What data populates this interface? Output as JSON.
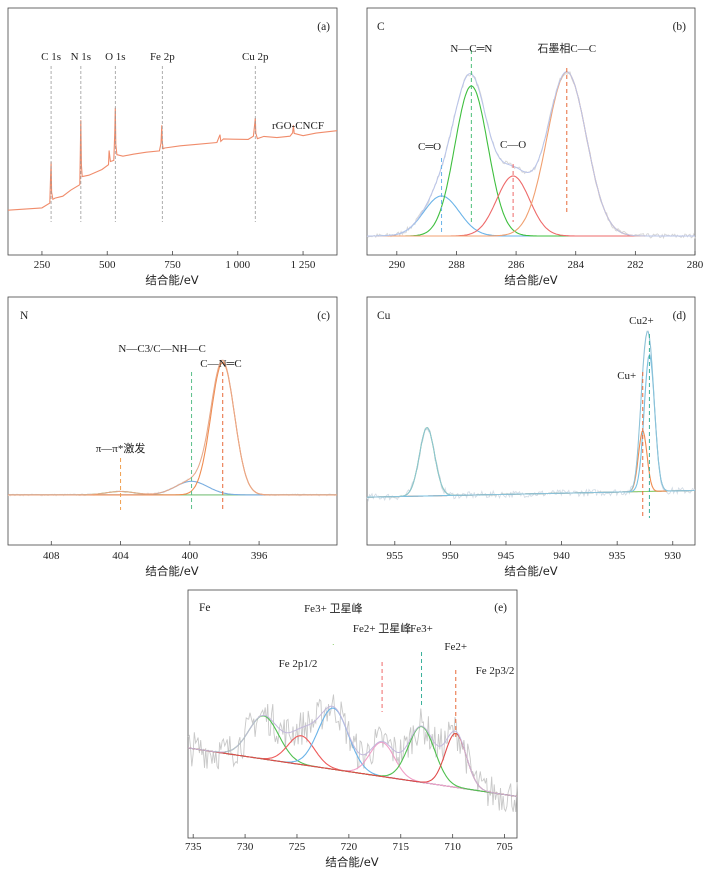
{
  "chart_data": [
    {
      "type": "line",
      "panel": "(a)",
      "corner_label": "",
      "xlabel": "结合能/eV",
      "xlim": [
        120,
        1380
      ],
      "ylim": [
        0,
        1
      ],
      "xticks": [
        "250",
        "500",
        "750",
        "1 000",
        "1 250"
      ],
      "xtick_values": [
        250,
        500,
        750,
        1000,
        1250
      ],
      "annotations": [
        {
          "text": "C 1s",
          "x": 285
        },
        {
          "text": "N 1s",
          "x": 399
        },
        {
          "text": "O 1s",
          "x": 531
        },
        {
          "text": "Fe 2p",
          "x": 711
        },
        {
          "text": "Cu 2p",
          "x": 1067
        }
      ],
      "series": [
        {
          "name": "rGO-CNCF",
          "color": "#f08c6b",
          "x": [
            120,
            250,
            280,
            283,
            285,
            287,
            292,
            300,
            330,
            360,
            395,
            397,
            399,
            401,
            404,
            430,
            480,
            505,
            507,
            512,
            525,
            529,
            531,
            533,
            537,
            560,
            600,
            650,
            700,
            706,
            709,
            711,
            714,
            720,
            780,
            850,
            920,
            932,
            935,
            945,
            980,
            1040,
            1060,
            1065,
            1067,
            1069,
            1075,
            1100,
            1150,
            1200,
            1210,
            1213,
            1216,
            1250,
            1300,
            1380
          ],
          "y": [
            0.1,
            0.12,
            0.14,
            0.28,
            0.36,
            0.2,
            0.16,
            0.17,
            0.18,
            0.21,
            0.24,
            0.4,
            0.58,
            0.34,
            0.28,
            0.29,
            0.32,
            0.34,
            0.42,
            0.36,
            0.37,
            0.52,
            0.64,
            0.45,
            0.4,
            0.39,
            0.4,
            0.41,
            0.42,
            0.46,
            0.55,
            0.46,
            0.43,
            0.43,
            0.44,
            0.45,
            0.46,
            0.5,
            0.47,
            0.48,
            0.48,
            0.48,
            0.49,
            0.56,
            0.59,
            0.51,
            0.48,
            0.49,
            0.49,
            0.49,
            0.51,
            0.55,
            0.51,
            0.5,
            0.51,
            0.52
          ]
        }
      ]
    },
    {
      "type": "line",
      "panel": "(b)",
      "corner_label": "C",
      "xlabel": "结合能/eV",
      "xlim": [
        291,
        280
      ],
      "ylim": [
        0,
        1
      ],
      "xticks": [
        "290",
        "288",
        "286",
        "284",
        "282",
        "280"
      ],
      "xtick_values": [
        290,
        288,
        286,
        284,
        282,
        280
      ],
      "peaks": [
        {
          "label": "C═O",
          "center": 288.5,
          "amp": 0.2,
          "fwhm": 1.4,
          "color": "#6ab3e8",
          "marker": "#6ab3e8"
        },
        {
          "label": "N—C═N",
          "center": 287.5,
          "amp": 0.75,
          "fwhm": 1.3,
          "color": "#3fbf3f",
          "marker": "#4fc07a"
        },
        {
          "label": "C—O",
          "center": 286.1,
          "amp": 0.3,
          "fwhm": 1.3,
          "color": "#ee6a6a",
          "marker": "#ee6a6a"
        },
        {
          "label": "石墨相C—C",
          "center": 284.3,
          "amp": 0.82,
          "fwhm": 1.55,
          "color": "#f0a070",
          "marker": "#e86a3a"
        }
      ]
    },
    {
      "type": "line",
      "panel": "(c)",
      "corner_label": "N",
      "xlabel": "结合能/eV",
      "xlim": [
        410.5,
        391.5
      ],
      "ylim": [
        0,
        1
      ],
      "xticks": [
        "408",
        "404",
        "400",
        "396"
      ],
      "xtick_values": [
        408,
        404,
        400,
        396
      ],
      "peaks": [
        {
          "label": "π—π*激发",
          "center": 404,
          "amp": 0.02,
          "fwhm": 2.0,
          "color": "#7fc97f",
          "marker": "#f0a050"
        },
        {
          "label": "N—C3/C—NH—C",
          "center": 399.9,
          "amp": 0.08,
          "fwhm": 2.2,
          "color": "#7aaee0",
          "marker": "#5cc08a"
        },
        {
          "label": "C—N═C",
          "center": 398.1,
          "amp": 0.78,
          "fwhm": 1.6,
          "color": "#f08c50",
          "marker": "#e86a3a"
        }
      ]
    },
    {
      "type": "line",
      "panel": "(d)",
      "corner_label": "Cu",
      "xlabel": "结合能/eV",
      "xlim": [
        957.5,
        928
      ],
      "ylim": [
        0,
        1
      ],
      "xticks": [
        "955",
        "950",
        "945",
        "940",
        "935",
        "930"
      ],
      "xtick_values": [
        955,
        950,
        945,
        940,
        935,
        930
      ],
      "peaks": [
        {
          "label": "",
          "center": 952.1,
          "amp": 0.36,
          "fwhm": 1.6,
          "color": "#8fcf6f",
          "marker": ""
        },
        {
          "label": "Cu+",
          "center": 932.7,
          "amp": 0.32,
          "fwhm": 0.9,
          "color": "#f08c50",
          "marker": "#e86a3a"
        },
        {
          "label": "Cu2+",
          "center": 932.1,
          "amp": 0.72,
          "fwhm": 1.1,
          "color": "#7ac0e0",
          "marker": "#39b09a"
        }
      ]
    },
    {
      "type": "line",
      "panel": "(e)",
      "corner_label": "Fe",
      "xlabel": "结合能/eV",
      "xlim": [
        735.5,
        703.8
      ],
      "ylim": [
        0,
        1
      ],
      "xticks": [
        "735",
        "730",
        "725",
        "720",
        "715",
        "710",
        "705"
      ],
      "xtick_values": [
        735,
        730,
        725,
        720,
        715,
        710,
        705
      ],
      "annotations": [
        {
          "text": "Fe 2p1/2"
        },
        {
          "text": "Fe 2p3/2"
        }
      ],
      "peaks": [
        {
          "label": "",
          "center": 728.2,
          "amp": 0.24,
          "fwhm": 3.4,
          "color": "#4fc04f",
          "marker": ""
        },
        {
          "label": "",
          "center": 724.6,
          "amp": 0.16,
          "fwhm": 3.0,
          "color": "#ee5a5a",
          "marker": ""
        },
        {
          "label": "Fe3+ 卫星峰",
          "center": 721.5,
          "amp": 0.34,
          "fwhm": 3.4,
          "color": "#6ab3e8",
          "marker": "#8fcf6f"
        },
        {
          "label": "Fe2+ 卫星峰",
          "center": 716.8,
          "amp": 0.19,
          "fwhm": 2.8,
          "color": "#f0a0c8",
          "marker": "#ee6a6a"
        },
        {
          "label": "Fe3+",
          "center": 713.0,
          "amp": 0.31,
          "fwhm": 3.0,
          "color": "#4fc04f",
          "marker": "#39b09a"
        },
        {
          "label": "Fe2+",
          "center": 709.7,
          "amp": 0.3,
          "fwhm": 2.4,
          "color": "#e04a4a",
          "marker": "#e86a3a"
        }
      ]
    }
  ]
}
